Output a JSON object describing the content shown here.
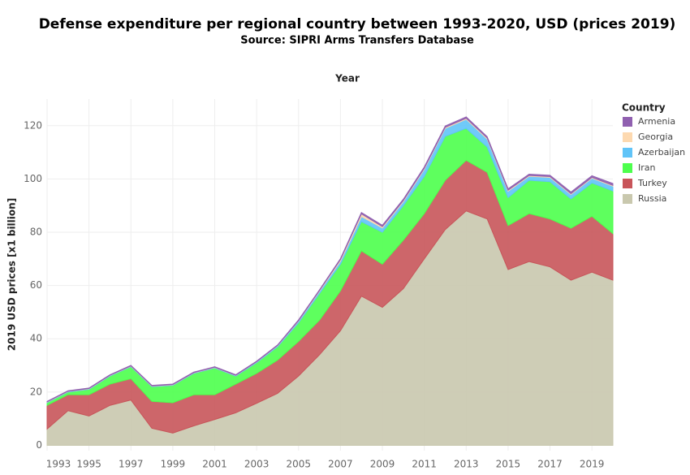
{
  "chart_data": {
    "type": "stacked_area",
    "title": "Defense expenditure per regional country between 1993-2020, USD (prices 2019)",
    "subtitle": "Source: SIPRI Arms Transfers Database",
    "x_label": "Year",
    "y_label": "2019 USD prices  [x1 billion]",
    "legend_title": "Country",
    "legend": "right",
    "grid": true,
    "x": [
      1993,
      1994,
      1995,
      1996,
      1997,
      1998,
      1999,
      2000,
      2001,
      2002,
      2003,
      2004,
      2005,
      2006,
      2007,
      2008,
      2009,
      2010,
      2011,
      2012,
      2013,
      2014,
      2015,
      2016,
      2017,
      2018,
      2019,
      2020
    ],
    "xlim": [
      1993,
      2020
    ],
    "xticks": [
      1993,
      1995,
      1997,
      1999,
      2001,
      2003,
      2005,
      2007,
      2009,
      2011,
      2013,
      2015,
      2017,
      2019
    ],
    "ylim": [
      -2,
      130
    ],
    "yticks": [
      0,
      20,
      40,
      60,
      80,
      100,
      120
    ],
    "series": [
      {
        "name": "Armenia",
        "color": "#9060b0",
        "values": [
          0.2,
          0.2,
          0.2,
          0.2,
          0.2,
          0.2,
          0.2,
          0.2,
          0.2,
          0.2,
          0.2,
          0.2,
          0.3,
          0.3,
          0.4,
          0.5,
          0.5,
          0.5,
          0.5,
          0.5,
          0.5,
          0.5,
          0.5,
          0.5,
          0.5,
          0.6,
          0.6,
          0.7
        ]
      },
      {
        "name": "Georgia",
        "color": "#fdd9b0",
        "values": [
          0.1,
          0.1,
          0.1,
          0.1,
          0.1,
          0.1,
          0.1,
          0.1,
          0.1,
          0.1,
          0.1,
          0.1,
          0.2,
          0.3,
          0.6,
          1.0,
          0.5,
          0.4,
          0.4,
          0.4,
          0.4,
          0.4,
          0.4,
          0.3,
          0.3,
          0.3,
          0.3,
          0.3
        ]
      },
      {
        "name": "Azerbaijan",
        "color": "#60c4f8",
        "values": [
          0.2,
          0.2,
          0.2,
          0.2,
          0.2,
          0.2,
          0.2,
          0.2,
          0.2,
          0.2,
          0.3,
          0.4,
          0.6,
          0.8,
          1.1,
          1.9,
          1.6,
          1.5,
          2.6,
          3.0,
          3.4,
          3.0,
          2.4,
          1.5,
          1.6,
          1.7,
          1.8,
          1.8
        ]
      },
      {
        "name": "Iran",
        "color": "#4dff4d",
        "values": [
          1,
          1,
          2,
          3,
          4.5,
          5.5,
          6.5,
          8,
          10,
          3,
          4,
          5,
          7,
          10,
          10,
          11,
          12,
          13,
          14,
          16.5,
          12,
          9.5,
          10.5,
          12.5,
          14,
          11,
          12.5,
          16
        ]
      },
      {
        "name": "Turkey",
        "color": "#c8555a",
        "values": [
          8.9,
          6,
          8,
          8,
          8,
          10.1,
          11.4,
          11.7,
          9.3,
          10.8,
          11.2,
          12.5,
          13,
          13,
          15,
          17,
          16.2,
          18.2,
          17,
          18.5,
          19,
          17.5,
          16.5,
          18,
          18,
          19.5,
          21,
          17.5
        ]
      },
      {
        "name": "Russia",
        "color": "#c9c8ae",
        "values": [
          6.1,
          13,
          11,
          15,
          17,
          6.4,
          4.6,
          7.3,
          9.7,
          12.2,
          15.8,
          19.5,
          26,
          34,
          43,
          56,
          51.8,
          58.8,
          70,
          81,
          88,
          85,
          66,
          69,
          67,
          62,
          65,
          62
        ]
      }
    ]
  }
}
